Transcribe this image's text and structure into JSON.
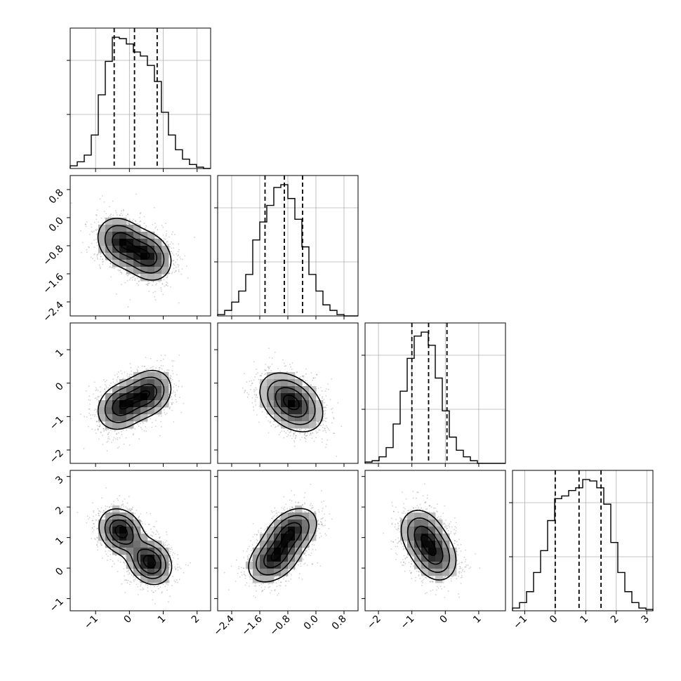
{
  "chart_data": {
    "type": "corner",
    "n_params": 4,
    "params": [
      {
        "range": [
          -1.75,
          2.4
        ],
        "ticks": [
          -1,
          0,
          1,
          2
        ],
        "tick_labels": [
          "−1",
          "0",
          "1",
          "2"
        ],
        "hist": {
          "edges_start": -1.75,
          "bin_width": 0.2074,
          "counts": [
            2,
            5,
            10,
            25,
            55,
            80,
            98,
            97,
            93,
            87,
            84,
            77,
            65,
            42,
            25,
            14,
            7,
            3,
            1,
            0
          ]
        },
        "quantiles": [
          -0.45,
          0.15,
          0.82
        ]
      },
      {
        "range": [
          -2.8,
          1.2
        ],
        "ticks": [
          -2.4,
          -1.6,
          -0.8,
          0.0,
          0.8
        ],
        "tick_labels": [
          "−2.4",
          "−1.6",
          "−0.8",
          "0.0",
          "0.8"
        ],
        "hist": {
          "edges_start": -2.8,
          "bin_width": 0.2,
          "counts": [
            1,
            4,
            10,
            18,
            30,
            55,
            68,
            80,
            93,
            95,
            85,
            70,
            50,
            30,
            18,
            8,
            4,
            1,
            0,
            0
          ]
        },
        "quantiles": [
          -1.45,
          -0.9,
          -0.38
        ]
      },
      {
        "range": [
          -2.4,
          1.8
        ],
        "ticks": [
          -2,
          -1,
          0,
          1
        ],
        "tick_labels": [
          "−2",
          "−1",
          "0",
          "1"
        ],
        "hist": {
          "edges_start": -2.4,
          "bin_width": 0.21,
          "counts": [
            1,
            2,
            5,
            12,
            30,
            55,
            80,
            97,
            100,
            90,
            65,
            40,
            20,
            10,
            5,
            2,
            0,
            0,
            0,
            0
          ]
        },
        "quantiles": [
          -1.0,
          -0.5,
          0.05
        ]
      },
      {
        "range": [
          -1.4,
          3.2
        ],
        "ticks": [
          -1,
          0,
          1,
          2,
          3
        ],
        "tick_labels": [
          "−1",
          "0",
          "1",
          "2",
          "3"
        ],
        "hist": {
          "edges_start": -1.4,
          "bin_width": 0.23,
          "counts": [
            2,
            6,
            14,
            28,
            44,
            66,
            82,
            84,
            88,
            90,
            96,
            95,
            90,
            78,
            50,
            28,
            14,
            6,
            2,
            1
          ]
        },
        "quantiles": [
          0.0,
          0.78,
          1.5
        ]
      }
    ],
    "pairs": [
      {
        "row": 1,
        "col": 0,
        "components": [
          {
            "mx": -0.25,
            "my": -0.7,
            "sx": 0.38,
            "sy": 0.38,
            "rho": -0.2,
            "w": 0.5
          },
          {
            "mx": 0.55,
            "my": -1.1,
            "sx": 0.38,
            "sy": 0.38,
            "rho": -0.2,
            "w": 0.5
          }
        ]
      },
      {
        "row": 2,
        "col": 0,
        "components": [
          {
            "mx": -0.25,
            "my": -0.7,
            "sx": 0.38,
            "sy": 0.38,
            "rho": 0.2,
            "w": 0.5
          },
          {
            "mx": 0.55,
            "my": -0.3,
            "sx": 0.38,
            "sy": 0.38,
            "rho": 0.2,
            "w": 0.5
          }
        ]
      },
      {
        "row": 2,
        "col": 1,
        "components": [
          {
            "mx": -0.85,
            "my": -0.45,
            "sx": 0.42,
            "sy": 0.42,
            "rho": -0.3,
            "w": 0.5
          },
          {
            "mx": -0.55,
            "my": -0.7,
            "sx": 0.42,
            "sy": 0.42,
            "rho": -0.3,
            "w": 0.5
          }
        ]
      },
      {
        "row": 3,
        "col": 0,
        "components": [
          {
            "mx": -0.25,
            "my": 1.2,
            "sx": 0.35,
            "sy": 0.4,
            "rho": -0.2,
            "w": 0.5
          },
          {
            "mx": 0.6,
            "my": 0.2,
            "sx": 0.35,
            "sy": 0.4,
            "rho": -0.2,
            "w": 0.5
          }
        ]
      },
      {
        "row": 3,
        "col": 1,
        "components": [
          {
            "mx": -1.2,
            "my": 0.3,
            "sx": 0.4,
            "sy": 0.42,
            "rho": 0.35,
            "w": 0.5
          },
          {
            "mx": -0.7,
            "my": 1.2,
            "sx": 0.4,
            "sy": 0.42,
            "rho": 0.35,
            "w": 0.5
          }
        ]
      },
      {
        "row": 3,
        "col": 2,
        "components": [
          {
            "mx": -0.7,
            "my": 1.1,
            "sx": 0.35,
            "sy": 0.45,
            "rho": -0.2,
            "w": 0.5
          },
          {
            "mx": -0.3,
            "my": 0.4,
            "sx": 0.35,
            "sy": 0.45,
            "rho": -0.2,
            "w": 0.5
          }
        ]
      }
    ],
    "grid": true,
    "colors": {
      "points": "#000000",
      "contour": "#000000",
      "density": "#000000",
      "grid": "#b0b0b0"
    }
  }
}
